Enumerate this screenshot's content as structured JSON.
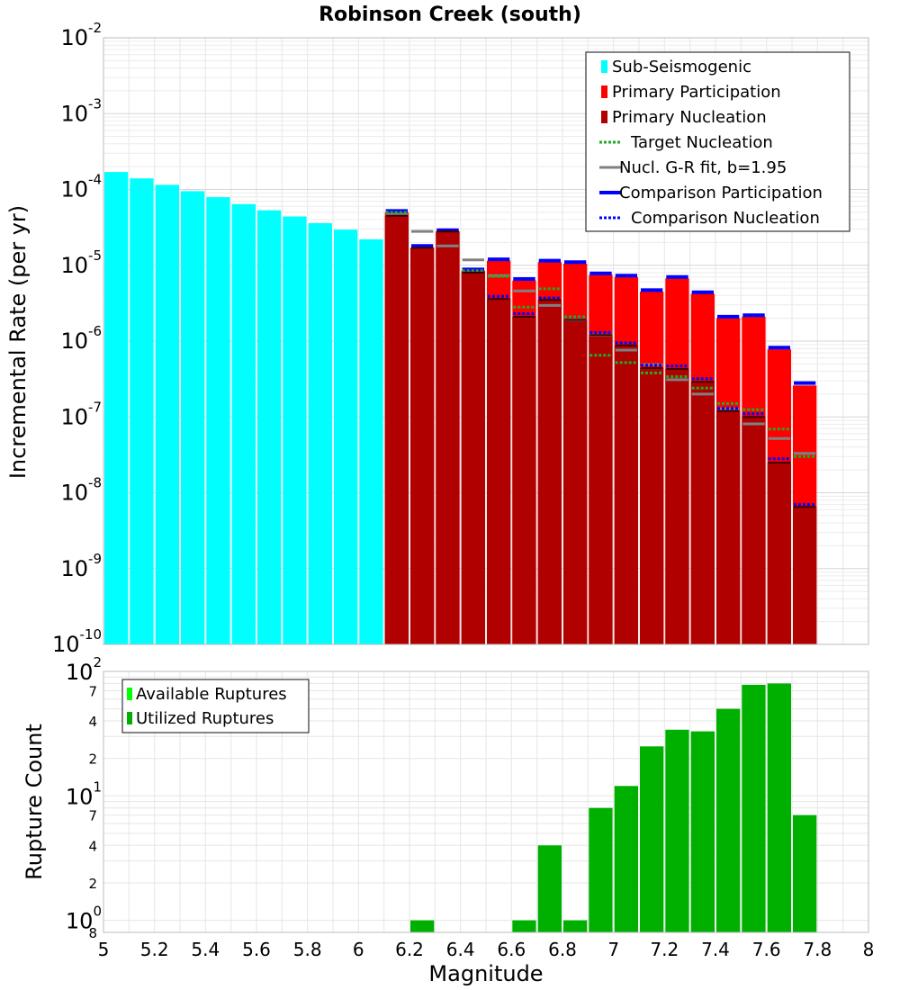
{
  "chart_data": [
    {
      "type": "bar",
      "title": "Robinson Creek (south)",
      "xlabel": "Magnitude",
      "ylabel": "Incremental Rate (per yr)",
      "yscale": "log",
      "xlim": [
        5,
        8
      ],
      "ylim": [
        1e-10,
        0.01
      ],
      "bin_width": 0.1,
      "legend": {
        "position": "top-right",
        "entries": [
          {
            "label": "Sub-Seismogenic",
            "color": "#00ffff",
            "style": "box"
          },
          {
            "label": "Primary Participation",
            "color": "#ff0000",
            "style": "box"
          },
          {
            "label": "Primary Nucleation",
            "color": "#b00000",
            "style": "box"
          },
          {
            "label": "Target Nucleation",
            "color": "#22aa22",
            "style": "dotted"
          },
          {
            "label": "Nucl. G-R fit, b=1.95",
            "color": "#808080",
            "style": "line"
          },
          {
            "label": "Comparison Participation",
            "color": "#0000ff",
            "style": "thick"
          },
          {
            "label": "Comparison Nucleation",
            "color": "#0000ff",
            "style": "dotted"
          }
        ]
      },
      "series": [
        {
          "name": "Sub-Seismogenic",
          "color": "#00ffff",
          "x": [
            5.05,
            5.15,
            5.25,
            5.35,
            5.45,
            5.55,
            5.65,
            5.75,
            5.85,
            5.95,
            6.05
          ],
          "values": [
            0.00017,
            0.00014,
            0.000115,
            9.5e-05,
            7.9e-05,
            6.4e-05,
            5.3e-05,
            4.4e-05,
            3.6e-05,
            2.95e-05,
            2.2e-05
          ]
        },
        {
          "name": "Primary Participation",
          "color": "#ff0000",
          "x": [
            6.15,
            6.25,
            6.35,
            6.45,
            6.55,
            6.65,
            6.75,
            6.85,
            6.95,
            7.05,
            7.15,
            7.25,
            7.35,
            7.45,
            7.55,
            7.65,
            7.75
          ],
          "values": [
            5e-05,
            1.7e-05,
            2.8e-05,
            8.5e-06,
            1.15e-05,
            6.3e-06,
            1.1e-05,
            1.05e-05,
            7.5e-06,
            7e-06,
            4.5e-06,
            6.7e-06,
            4.2e-06,
            2e-06,
            2.1e-06,
            7.8e-07,
            2.6e-07
          ]
        },
        {
          "name": "Primary Nucleation",
          "color": "#b00000",
          "x": [
            6.15,
            6.25,
            6.35,
            6.45,
            6.55,
            6.65,
            6.75,
            6.85,
            6.95,
            7.05,
            7.15,
            7.25,
            7.35,
            7.45,
            7.55,
            7.65,
            7.75
          ],
          "values": [
            4.5e-05,
            1.7e-05,
            2.8e-05,
            8e-06,
            3.6e-06,
            2.1e-06,
            3.5e-06,
            1.9e-06,
            1.2e-06,
            8.8e-07,
            4.4e-07,
            4.3e-07,
            2.9e-07,
            1.2e-07,
            1e-07,
            2.5e-08,
            6.5e-09
          ]
        },
        {
          "name": "Comparison Participation",
          "color": "#0000ff",
          "x": [
            6.15,
            6.25,
            6.35,
            6.45,
            6.55,
            6.65,
            6.75,
            6.85,
            6.95,
            7.05,
            7.15,
            7.25,
            7.35,
            7.45,
            7.55,
            7.65,
            7.75
          ],
          "values": [
            5.2e-05,
            1.8e-05,
            2.9e-05,
            8.8e-06,
            1.2e-05,
            6.6e-06,
            1.15e-05,
            1.1e-05,
            7.8e-06,
            7.3e-06,
            4.7e-06,
            7e-06,
            4.4e-06,
            2.1e-06,
            2.2e-06,
            8.2e-07,
            2.8e-07
          ]
        },
        {
          "name": "Comparison Nucleation",
          "color": "#0000ff",
          "x": [
            6.15,
            6.25,
            6.35,
            6.45,
            6.55,
            6.65,
            6.75,
            6.85,
            6.95,
            7.05,
            7.15,
            7.25,
            7.35,
            7.45,
            7.55,
            7.65,
            7.75
          ],
          "values": [
            5.2e-05,
            1.8e-05,
            2.9e-05,
            8.8e-06,
            3.9e-06,
            2.3e-06,
            3.7e-06,
            2.1e-06,
            1.3e-06,
            9.5e-07,
            4.8e-07,
            4.7e-07,
            3.2e-07,
            1.3e-07,
            1.1e-07,
            2.8e-08,
            7e-09
          ]
        },
        {
          "name": "Target Nucleation",
          "color": "#22aa22",
          "x": [
            6.15,
            6.45,
            6.55,
            6.65,
            6.75,
            6.85,
            6.95,
            7.05,
            7.15,
            7.25,
            7.35,
            7.45,
            7.55,
            7.65,
            7.75
          ],
          "values": [
            5e-05,
            8.5e-06,
            7.1e-06,
            2.8e-06,
            4.9e-06,
            2.1e-06,
            6.5e-07,
            5.2e-07,
            3.8e-07,
            3.4e-07,
            2.4e-07,
            1.5e-07,
            1.25e-07,
            6.9e-08,
            3e-08
          ]
        },
        {
          "name": "Nucl. G-R fit, b=1.95",
          "color": "#808080",
          "x": [
            6.15,
            6.25,
            6.35,
            6.45,
            6.55,
            6.65,
            6.75,
            6.85,
            6.95,
            7.05,
            7.15,
            7.25,
            7.35,
            7.45,
            7.55,
            7.65,
            7.75
          ],
          "values": [
            4.7e-05,
            2.8e-05,
            1.8e-05,
            1.18e-05,
            7.3e-06,
            4.6e-06,
            2.95e-06,
            1.9e-06,
            1.2e-06,
            7.6e-07,
            4.9e-07,
            3.1e-07,
            2e-07,
            1.28e-07,
            8.1e-08,
            5.2e-08,
            3.3e-08
          ]
        }
      ],
      "y_tick_labels": [
        {
          "base": "10",
          "exp": "-10"
        },
        {
          "base": "10",
          "exp": "-9"
        },
        {
          "base": "10",
          "exp": "-8"
        },
        {
          "base": "10",
          "exp": "-7"
        },
        {
          "base": "10",
          "exp": "-6"
        },
        {
          "base": "10",
          "exp": "-5"
        },
        {
          "base": "10",
          "exp": "-4"
        },
        {
          "base": "10",
          "exp": "-3"
        },
        {
          "base": "10",
          "exp": "-2"
        }
      ]
    },
    {
      "type": "bar",
      "title": "",
      "xlabel": "Magnitude",
      "ylabel": "Rupture Count",
      "yscale": "log",
      "xlim": [
        5,
        8
      ],
      "ylim": [
        0.8,
        100
      ],
      "bin_width": 0.1,
      "legend": {
        "position": "top-left",
        "entries": [
          {
            "label": "Available Ruptures",
            "color": "#00ff00",
            "style": "box"
          },
          {
            "label": "Utilized Ruptures",
            "color": "#00b000",
            "style": "box"
          }
        ]
      },
      "series": [
        {
          "name": "Utilized Ruptures",
          "color": "#00b000",
          "x": [
            6.25,
            6.65,
            6.75,
            6.85,
            6.95,
            7.05,
            7.15,
            7.25,
            7.35,
            7.45,
            7.55,
            7.65,
            7.75
          ],
          "values": [
            1,
            1,
            4,
            1,
            8,
            12,
            25,
            34,
            33,
            50,
            78,
            80,
            7
          ]
        }
      ],
      "y_tick_labels": [
        {
          "base": "10",
          "exp": "0"
        },
        {
          "base": "10",
          "exp": "1"
        },
        {
          "base": "10",
          "exp": "2"
        }
      ],
      "y_minor_labels": [
        "8",
        "2",
        "4",
        "7",
        "2",
        "4",
        "7"
      ]
    }
  ],
  "x_tick_labels": [
    "5",
    "5.2",
    "5.4",
    "5.6",
    "5.8",
    "6",
    "6.2",
    "6.4",
    "6.6",
    "6.8",
    "7",
    "7.2",
    "7.4",
    "7.6",
    "7.8",
    "8"
  ]
}
